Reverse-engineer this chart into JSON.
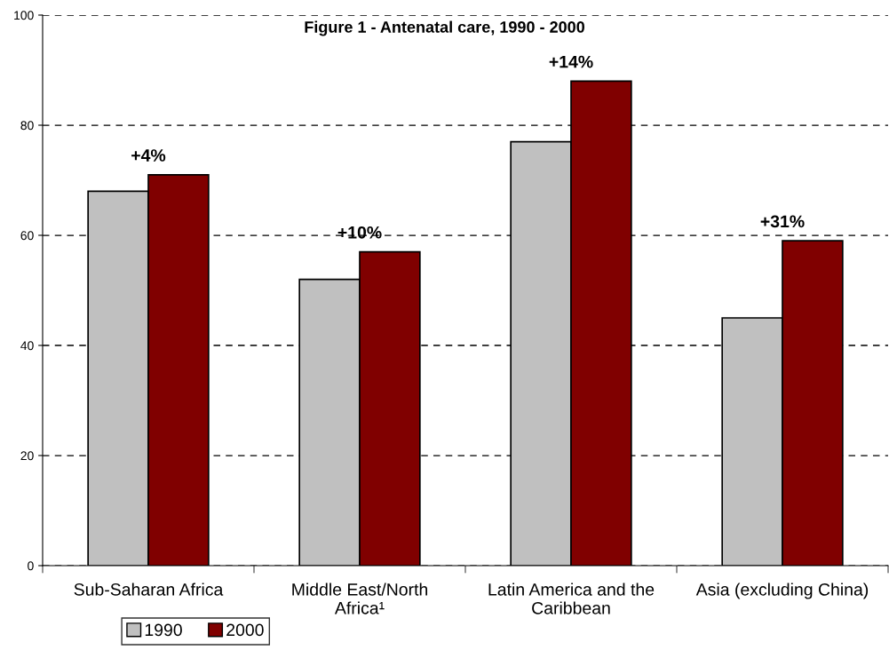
{
  "chart_data": {
    "type": "bar",
    "title": "Figure 1 - Antenatal care, 1990 - 2000",
    "categories": [
      "Sub-Saharan Africa",
      "Middle East/North\nAfrica¹",
      "Latin America and the\nCaribbean",
      "Asia (excluding China)"
    ],
    "series": [
      {
        "name": "1990",
        "color": "#c0c0c0",
        "values": [
          68,
          52,
          77,
          45
        ]
      },
      {
        "name": "2000",
        "color": "#800000",
        "values": [
          71,
          57,
          88,
          59
        ]
      }
    ],
    "ylim": [
      0,
      100
    ],
    "yticks": [
      0,
      20,
      40,
      60,
      80,
      100
    ],
    "grid": "y",
    "legend": "bottom",
    "annotations": [
      "+4%",
      "+10%",
      "+14%",
      "+31%"
    ]
  }
}
